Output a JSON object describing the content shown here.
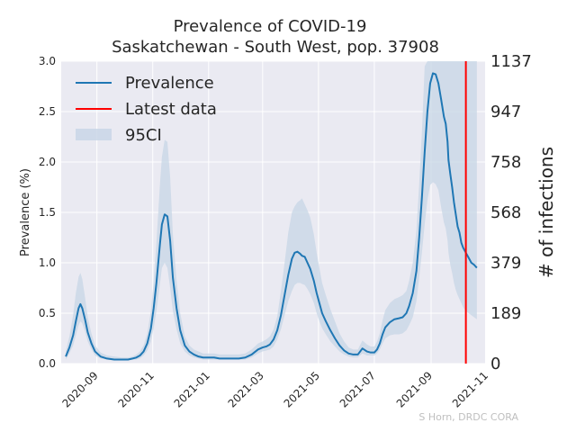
{
  "chart_data": {
    "type": "line",
    "title": "Prevalence of COVID-19",
    "subtitle": "Saskatchewan - South West, pop. 37908",
    "ylabel": "Prevalence (%)",
    "y2label": "# of infections",
    "ylim": [
      0,
      3.0
    ],
    "y_ticks": [
      0.0,
      0.5,
      1.0,
      1.5,
      2.0,
      2.5,
      3.0
    ],
    "y_tick_labels": [
      "0.0",
      "0.5",
      "1.0",
      "1.5",
      "2.0",
      "2.5",
      "3.0"
    ],
    "y2_ticks": [
      0,
      189,
      379,
      568,
      758,
      947,
      1137
    ],
    "y2_tick_labels": [
      "0",
      "189",
      "379",
      "568",
      "758",
      "947",
      "1137"
    ],
    "xlim": [
      "2020-07-24",
      "2021-10-30"
    ],
    "x_ticks": [
      "2020-09-01",
      "2020-11-01",
      "2021-01-01",
      "2021-03-01",
      "2021-05-01",
      "2021-07-01",
      "2021-09-01",
      "2021-11-01"
    ],
    "x_tick_labels": [
      "2020-09",
      "2020-11",
      "2021-01",
      "2021-03",
      "2021-05",
      "2021-07",
      "2021-09",
      "2021-11"
    ],
    "grid": true,
    "legend_position": "top-left",
    "latest_data_date": "2021-10-09",
    "series": [
      {
        "name": "Prevalence",
        "color": "#1f77b4",
        "x": [
          "2020-07-29",
          "2020-08-02",
          "2020-08-06",
          "2020-08-09",
          "2020-08-12",
          "2020-08-14",
          "2020-08-16",
          "2020-08-19",
          "2020-08-22",
          "2020-08-26",
          "2020-08-30",
          "2020-09-05",
          "2020-09-12",
          "2020-09-20",
          "2020-09-28",
          "2020-10-05",
          "2020-10-10",
          "2020-10-14",
          "2020-10-18",
          "2020-10-22",
          "2020-10-26",
          "2020-10-30",
          "2020-11-02",
          "2020-11-05",
          "2020-11-07",
          "2020-11-09",
          "2020-11-11",
          "2020-11-14",
          "2020-11-17",
          "2020-11-20",
          "2020-11-23",
          "2020-11-27",
          "2020-12-01",
          "2020-12-06",
          "2020-12-11",
          "2020-12-16",
          "2020-12-21",
          "2020-12-26",
          "2021-01-01",
          "2021-01-07",
          "2021-01-13",
          "2021-01-20",
          "2021-01-27",
          "2021-02-03",
          "2021-02-10",
          "2021-02-17",
          "2021-02-24",
          "2021-03-01",
          "2021-03-05",
          "2021-03-09",
          "2021-03-13",
          "2021-03-17",
          "2021-03-21",
          "2021-03-25",
          "2021-03-29",
          "2021-04-02",
          "2021-04-05",
          "2021-04-08",
          "2021-04-11",
          "2021-04-13",
          "2021-04-16",
          "2021-04-19",
          "2021-04-22",
          "2021-04-26",
          "2021-04-29",
          "2021-05-02",
          "2021-05-05",
          "2021-05-09",
          "2021-05-14",
          "2021-05-19",
          "2021-05-24",
          "2021-05-29",
          "2021-06-03",
          "2021-06-08",
          "2021-06-13",
          "2021-06-18",
          "2021-06-23",
          "2021-06-27",
          "2021-07-01",
          "2021-07-04",
          "2021-07-07",
          "2021-07-10",
          "2021-07-13",
          "2021-07-18",
          "2021-07-23",
          "2021-07-28",
          "2021-08-01",
          "2021-08-05",
          "2021-08-08",
          "2021-08-12",
          "2021-08-16",
          "2021-08-19",
          "2021-08-22",
          "2021-08-25",
          "2021-08-28",
          "2021-08-31",
          "2021-09-03",
          "2021-09-06",
          "2021-09-09",
          "2021-09-12",
          "2021-09-15",
          "2021-09-17",
          "2021-09-19",
          "2021-09-20",
          "2021-09-22",
          "2021-09-24",
          "2021-09-26",
          "2021-09-28",
          "2021-09-30",
          "2021-10-02",
          "2021-10-04",
          "2021-10-06",
          "2021-10-09",
          "2021-10-12",
          "2021-10-15",
          "2021-10-18",
          "2021-10-21"
        ],
        "y": [
          0.07,
          0.16,
          0.28,
          0.42,
          0.55,
          0.59,
          0.55,
          0.44,
          0.31,
          0.2,
          0.12,
          0.07,
          0.05,
          0.04,
          0.04,
          0.04,
          0.05,
          0.06,
          0.08,
          0.12,
          0.2,
          0.35,
          0.55,
          0.8,
          1.0,
          1.2,
          1.38,
          1.48,
          1.46,
          1.22,
          0.85,
          0.55,
          0.33,
          0.18,
          0.12,
          0.09,
          0.07,
          0.06,
          0.06,
          0.06,
          0.05,
          0.05,
          0.05,
          0.05,
          0.06,
          0.09,
          0.14,
          0.16,
          0.17,
          0.19,
          0.24,
          0.33,
          0.48,
          0.68,
          0.88,
          1.04,
          1.1,
          1.11,
          1.09,
          1.07,
          1.06,
          1.0,
          0.94,
          0.82,
          0.7,
          0.6,
          0.5,
          0.42,
          0.33,
          0.25,
          0.18,
          0.13,
          0.1,
          0.09,
          0.09,
          0.15,
          0.12,
          0.11,
          0.11,
          0.14,
          0.2,
          0.29,
          0.36,
          0.41,
          0.44,
          0.45,
          0.46,
          0.5,
          0.57,
          0.7,
          0.92,
          1.25,
          1.65,
          2.1,
          2.5,
          2.78,
          2.88,
          2.87,
          2.78,
          2.62,
          2.45,
          2.38,
          2.2,
          2.02,
          1.88,
          1.75,
          1.6,
          1.48,
          1.36,
          1.3,
          1.2,
          1.15,
          1.1,
          1.05,
          1.0,
          0.98,
          0.95
        ]
      },
      {
        "name": "Latest data",
        "color": "#ff0000",
        "x": [
          "2021-10-09",
          "2021-10-09"
        ],
        "y": [
          0,
          3.0
        ]
      }
    ],
    "band": {
      "name": "95CI",
      "color": "#c7d5e6",
      "x": [
        "2020-07-29",
        "2020-08-02",
        "2020-08-06",
        "2020-08-09",
        "2020-08-12",
        "2020-08-14",
        "2020-08-16",
        "2020-08-19",
        "2020-08-22",
        "2020-08-26",
        "2020-08-30",
        "2020-09-05",
        "2020-09-12",
        "2020-09-20",
        "2020-09-28",
        "2020-10-05",
        "2020-10-10",
        "2020-10-14",
        "2020-10-18",
        "2020-10-22",
        "2020-10-26",
        "2020-10-30",
        "2020-11-02",
        "2020-11-05",
        "2020-11-07",
        "2020-11-09",
        "2020-11-11",
        "2020-11-14",
        "2020-11-17",
        "2020-11-20",
        "2020-11-23",
        "2020-11-27",
        "2020-12-01",
        "2020-12-06",
        "2020-12-11",
        "2020-12-16",
        "2020-12-21",
        "2020-12-26",
        "2021-01-01",
        "2021-01-07",
        "2021-01-13",
        "2021-01-20",
        "2021-01-27",
        "2021-02-03",
        "2021-02-10",
        "2021-02-17",
        "2021-02-24",
        "2021-03-01",
        "2021-03-05",
        "2021-03-09",
        "2021-03-13",
        "2021-03-17",
        "2021-03-21",
        "2021-03-25",
        "2021-03-29",
        "2021-04-02",
        "2021-04-05",
        "2021-04-08",
        "2021-04-11",
        "2021-04-13",
        "2021-04-16",
        "2021-04-19",
        "2021-04-22",
        "2021-04-26",
        "2021-04-29",
        "2021-05-02",
        "2021-05-05",
        "2021-05-09",
        "2021-05-14",
        "2021-05-19",
        "2021-05-24",
        "2021-05-29",
        "2021-06-03",
        "2021-06-08",
        "2021-06-13",
        "2021-06-18",
        "2021-06-23",
        "2021-06-27",
        "2021-07-01",
        "2021-07-04",
        "2021-07-07",
        "2021-07-10",
        "2021-07-13",
        "2021-07-18",
        "2021-07-23",
        "2021-07-28",
        "2021-08-01",
        "2021-08-05",
        "2021-08-08",
        "2021-08-12",
        "2021-08-16",
        "2021-08-19",
        "2021-08-22",
        "2021-08-25",
        "2021-08-28",
        "2021-08-31",
        "2021-09-03",
        "2021-09-06",
        "2021-09-09",
        "2021-09-12",
        "2021-09-15",
        "2021-09-17",
        "2021-09-19",
        "2021-09-20",
        "2021-09-22",
        "2021-09-24",
        "2021-09-26",
        "2021-09-28",
        "2021-09-30",
        "2021-10-02",
        "2021-10-04",
        "2021-10-06",
        "2021-10-09",
        "2021-10-12",
        "2021-10-15",
        "2021-10-18",
        "2021-10-21"
      ],
      "lower": [
        0.04,
        0.1,
        0.18,
        0.28,
        0.38,
        0.42,
        0.4,
        0.32,
        0.22,
        0.14,
        0.08,
        0.05,
        0.04,
        0.03,
        0.03,
        0.03,
        0.04,
        0.04,
        0.05,
        0.08,
        0.13,
        0.22,
        0.35,
        0.52,
        0.66,
        0.8,
        0.95,
        1.0,
        0.95,
        0.75,
        0.52,
        0.34,
        0.2,
        0.12,
        0.08,
        0.06,
        0.05,
        0.04,
        0.04,
        0.04,
        0.04,
        0.04,
        0.04,
        0.04,
        0.04,
        0.06,
        0.1,
        0.12,
        0.13,
        0.14,
        0.17,
        0.24,
        0.34,
        0.48,
        0.62,
        0.72,
        0.78,
        0.8,
        0.8,
        0.79,
        0.78,
        0.74,
        0.69,
        0.6,
        0.5,
        0.42,
        0.35,
        0.29,
        0.22,
        0.17,
        0.12,
        0.09,
        0.07,
        0.06,
        0.06,
        0.1,
        0.08,
        0.08,
        0.08,
        0.1,
        0.14,
        0.2,
        0.25,
        0.28,
        0.29,
        0.29,
        0.3,
        0.33,
        0.38,
        0.46,
        0.62,
        0.85,
        1.1,
        1.38,
        1.62,
        1.77,
        1.8,
        1.78,
        1.72,
        1.55,
        1.4,
        1.34,
        1.22,
        1.1,
        0.98,
        0.9,
        0.8,
        0.73,
        0.68,
        0.64,
        0.6,
        0.56,
        0.52,
        0.5,
        0.48,
        0.46,
        0.44
      ],
      "upper": [
        0.12,
        0.27,
        0.48,
        0.7,
        0.86,
        0.9,
        0.84,
        0.66,
        0.46,
        0.3,
        0.18,
        0.11,
        0.08,
        0.07,
        0.06,
        0.06,
        0.07,
        0.09,
        0.12,
        0.18,
        0.3,
        0.52,
        0.82,
        1.2,
        1.5,
        1.8,
        2.05,
        2.22,
        2.2,
        1.85,
        1.28,
        0.82,
        0.5,
        0.27,
        0.18,
        0.14,
        0.12,
        0.1,
        0.1,
        0.1,
        0.09,
        0.09,
        0.09,
        0.09,
        0.1,
        0.14,
        0.2,
        0.22,
        0.24,
        0.27,
        0.34,
        0.47,
        0.72,
        1.0,
        1.3,
        1.5,
        1.56,
        1.6,
        1.62,
        1.64,
        1.58,
        1.52,
        1.45,
        1.28,
        1.1,
        0.95,
        0.8,
        0.68,
        0.54,
        0.42,
        0.3,
        0.22,
        0.16,
        0.14,
        0.14,
        0.23,
        0.19,
        0.17,
        0.17,
        0.22,
        0.3,
        0.43,
        0.53,
        0.6,
        0.64,
        0.66,
        0.68,
        0.72,
        0.82,
        1.0,
        1.32,
        1.78,
        2.3,
        2.95,
        3.0,
        3.0,
        3.0,
        3.0,
        3.0,
        3.0,
        3.0,
        3.0,
        3.0,
        3.0,
        3.0,
        3.0,
        3.0,
        3.0,
        3.0,
        3.0,
        3.0,
        3.0,
        3.0,
        3.0,
        3.0,
        3.0,
        3.0
      ]
    },
    "credit": "S Horn, DRDC CORA"
  }
}
